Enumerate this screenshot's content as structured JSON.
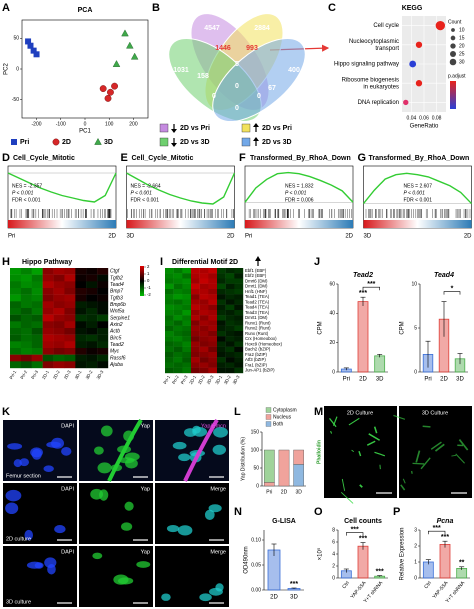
{
  "panels": {
    "A": {
      "label": "A",
      "title": "PCA",
      "xlabel": "PC1",
      "ylabel": "PC2",
      "xlim": [
        -260,
        260
      ],
      "ylim": [
        -80,
        80
      ],
      "xticks": [
        -200,
        -100,
        0,
        100,
        200
      ],
      "yticks": [
        -50,
        0,
        50
      ],
      "series": [
        {
          "name": "Pri",
          "color": "#1f3fbf",
          "marker": "square",
          "x": [
            -235,
            -225,
            -212,
            -200
          ],
          "y": [
            45,
            38,
            30,
            24
          ]
        },
        {
          "name": "2D",
          "color": "#d62728",
          "marker": "circle",
          "x": [
            75,
            95,
            105,
            122
          ],
          "y": [
            -32,
            -48,
            -38,
            -28
          ]
        },
        {
          "name": "3D",
          "color": "#3fa84a",
          "marker": "triangle",
          "x": [
            130,
            165,
            185,
            205
          ],
          "y": [
            8,
            58,
            38,
            20
          ]
        }
      ]
    },
    "B": {
      "label": "B",
      "numbers": [
        4547,
        2884,
        1031,
        {
          "value": 1446,
          "color": "#e53935"
        },
        {
          "value": 993,
          "color": "#e53935"
        },
        400,
        158,
        5,
        67,
        0,
        0,
        0,
        0
      ],
      "legend": [
        {
          "label": "2D vs Pri",
          "direction": "down",
          "color": "#c58be0"
        },
        {
          "label": "2D vs Pri",
          "direction": "up",
          "color": "#f2e25c"
        },
        {
          "label": "2D vs 3D",
          "direction": "down",
          "color": "#6fcf6f"
        },
        {
          "label": "2D vs 3D",
          "direction": "up",
          "color": "#72a8e8"
        }
      ]
    },
    "C": {
      "label": "C",
      "title": "KEGG",
      "xlabel": "GeneRatio",
      "xlim": [
        0.025,
        0.095
      ],
      "xticks": [
        0.04,
        0.06,
        0.08
      ],
      "terms": [
        {
          "lines": [
            "Cell cycle"
          ],
          "ratio": 0.086,
          "count": 30,
          "color": "#e8231c"
        },
        {
          "lines": [
            "Nucleocytoplasmic",
            "transport"
          ],
          "ratio": 0.052,
          "count": 14,
          "color": "#e8231c"
        },
        {
          "lines": [
            "Hippo signaling pathway"
          ],
          "ratio": 0.042,
          "count": 16,
          "color": "#2a3fd6"
        },
        {
          "lines": [
            "Ribosome biogenesis",
            "in eukaryotes"
          ],
          "ratio": 0.052,
          "count": 14,
          "color": "#e8231c"
        },
        {
          "lines": [
            "DNA replication"
          ],
          "ratio": 0.031,
          "count": 10,
          "color": "#e0306a"
        }
      ],
      "count_title": "Count",
      "count_legend": [
        10,
        15,
        20,
        25,
        30
      ],
      "color_title": "p.adjust"
    },
    "gsea": [
      {
        "label": "D",
        "title": "Cell_Cycle_Mitotic",
        "nes": "NES = -2.357",
        "p": "P < 0.001",
        "fdr": "FDR < 0.001",
        "left": "Pri",
        "right": "2D",
        "ylim": [
          -0.7,
          0.1
        ],
        "curve": [
          0,
          -0.1,
          -0.2,
          -0.3,
          -0.38,
          -0.45,
          -0.5,
          -0.55,
          -0.58,
          -0.45,
          0
        ]
      },
      {
        "label": "E",
        "title": "Cell_Cycle_Mitotic",
        "nes": "NES = -2.664",
        "p": "P < 0.001",
        "fdr": "FDR < 0.001",
        "left": "3D",
        "right": "2D",
        "ylim": [
          -0.7,
          0.1
        ],
        "curve": [
          0,
          -0.12,
          -0.24,
          -0.34,
          -0.43,
          -0.5,
          -0.56,
          -0.6,
          -0.62,
          -0.48,
          0
        ]
      },
      {
        "label": "F",
        "title": "Transformed_By_RhoA_Down",
        "nes": "NES = 1.832",
        "p": "P < 0.001",
        "fdr": "FDR = 0.006",
        "left": "Pri",
        "right": "2D",
        "ylim": [
          -0.1,
          0.6
        ],
        "curve": [
          0,
          0.25,
          0.4,
          0.5,
          0.52,
          0.5,
          0.45,
          0.38,
          0.3,
          0.2,
          0
        ]
      },
      {
        "label": "G",
        "title": "Transformed_By_RhoA_Down",
        "nes": "NES = 2.607",
        "p": "P < 0.001",
        "fdr": "FDR < 0.001",
        "left": "3D",
        "right": "2D",
        "ylim": [
          -0.1,
          0.8
        ],
        "curve": [
          0,
          0.3,
          0.55,
          0.65,
          0.68,
          0.65,
          0.6,
          0.5,
          0.4,
          0.25,
          0
        ]
      }
    ],
    "H": {
      "label": "H",
      "title": "Hippo Pathway",
      "columns": [
        "Pri-1",
        "Pri-2",
        "Pri-3",
        "2D-1",
        "2D-2",
        "2D-3",
        "3D-1",
        "3D-2",
        "3D-3"
      ],
      "rows": [
        "Ctgf",
        "Tgfb2",
        "Tead4",
        "Bmp7",
        "Tgfb3",
        "Bmp6b",
        "Wnt5a",
        "Serpine1",
        "Axin2",
        "Actb",
        "Birc5",
        "Tead2",
        "Myc",
        "Rassf6",
        "Ajuba"
      ],
      "matrix": [
        [
          -1.5,
          -1.3,
          -1.6,
          1.2,
          1.4,
          1.3,
          0.2,
          0.1,
          0.3
        ],
        [
          -1.4,
          -1.5,
          -1.2,
          1.3,
          1.1,
          1.5,
          0.1,
          0.2,
          -0.1
        ],
        [
          -1.2,
          -1.4,
          -1.3,
          1.5,
          1.3,
          1.2,
          0,
          -0.2,
          0.1
        ],
        [
          -1.3,
          -1.1,
          -1.4,
          1.2,
          1.4,
          1.1,
          0.3,
          0.2,
          0
        ],
        [
          -1.5,
          -1.2,
          -1.3,
          1.1,
          1.3,
          1.4,
          0.2,
          0,
          0.1
        ],
        [
          -1,
          -1.2,
          -1.1,
          1.4,
          1.2,
          1.3,
          -0.3,
          -0.2,
          -0.1
        ],
        [
          -1.1,
          -0.9,
          -1.2,
          1.3,
          1.5,
          1.1,
          -0.2,
          -0.4,
          -0.1
        ],
        [
          -0.8,
          -1,
          -0.9,
          1.6,
          1.3,
          1.2,
          -0.5,
          -0.4,
          -0.6
        ],
        [
          -1.2,
          -1,
          -1.1,
          1.2,
          1.1,
          1.4,
          -0.1,
          -0.3,
          0
        ],
        [
          -1,
          -1.1,
          -0.8,
          1.3,
          1.2,
          1,
          -0.2,
          -0.1,
          -0.3
        ],
        [
          -0.9,
          -1.1,
          -1,
          1.5,
          1.4,
          1.3,
          -0.4,
          -0.5,
          -0.3
        ],
        [
          -1.3,
          -1.2,
          -1,
          1.4,
          1.3,
          1.5,
          -0.3,
          -0.2,
          -0.4
        ],
        [
          -1.1,
          -1.3,
          -1.2,
          1.2,
          1,
          1.1,
          0.3,
          0.1,
          0.2
        ],
        [
          1.2,
          1,
          1.3,
          -0.8,
          -1,
          -0.9,
          -0.3,
          -0.2,
          -0.4
        ],
        [
          -1,
          -0.8,
          -1.1,
          1.1,
          1.3,
          1.2,
          -0.2,
          -0.3,
          -0.1
        ]
      ],
      "scale": [
        2,
        1,
        0,
        -1,
        -2
      ]
    },
    "I": {
      "label": "I",
      "title": "Differential Motif 2D",
      "columns": [
        "Pri-1",
        "Pri-2",
        "Pri-3",
        "2D-1",
        "2D-2",
        "2D-3",
        "3D-1",
        "3D-2",
        "3D-3"
      ],
      "rows": [
        "Ebf1 (EBF)",
        "Ebf2 (EBF)",
        "Dmrt6 (DM)",
        "Dmrt1 (DM)",
        "Hnf1 (HNF)",
        "Tead1 (TEA)",
        "Tead2 (TEA)",
        "Tead4 (TEA)",
        "Tead3 (TEA)",
        "Dmrt1 (DM)",
        "Runx1 (Runt)",
        "Runx2 (Runt)",
        "Runx (Runt)",
        "Crx (Homeobox)",
        "Hoxc9 (Homeobox)",
        "Bach2 (bZIP)",
        "Fra2 (bZIP)",
        "Atf3 (bZIP)",
        "Fra1 (bZIP)",
        "Jun-AP1 (bZIP)"
      ],
      "matrix": [
        [
          -1.4,
          -1.2,
          -1.5,
          1.6,
          1.5,
          1.7,
          -0.6,
          -0.4,
          -0.5
        ],
        [
          -1.3,
          -1.4,
          -1.1,
          1.5,
          1.6,
          1.4,
          -0.5,
          -0.7,
          -0.3
        ],
        [
          -1.2,
          -1.3,
          -1.4,
          1.4,
          1.7,
          1.5,
          -0.4,
          -0.6,
          -0.6
        ],
        [
          -1.5,
          -1.1,
          -1.3,
          1.7,
          1.4,
          1.5,
          -0.7,
          -0.3,
          -0.5
        ],
        [
          -1.1,
          -1.3,
          -1.2,
          1.5,
          1.5,
          1.3,
          -0.4,
          -0.5,
          -0.6
        ],
        [
          -1.3,
          -1.5,
          -1.4,
          1.2,
          1.6,
          1.5,
          -0.2,
          -0.4,
          -0.3
        ],
        [
          -1.2,
          -1.1,
          -1.3,
          1.4,
          1.3,
          1.6,
          -0.5,
          -0.2,
          -0.4
        ],
        [
          -1.4,
          -1.3,
          -1.2,
          1.6,
          1.4,
          1.2,
          -0.3,
          -0.6,
          -0.2
        ],
        [
          -1.3,
          -1.2,
          -1.5,
          1.3,
          1.5,
          1.4,
          -0.4,
          -0.3,
          -0.5
        ],
        [
          -1.1,
          -1.4,
          -1.2,
          1.5,
          1.2,
          1.5,
          -0.6,
          -0.4,
          -0.3
        ],
        [
          -1.2,
          -1,
          -1.3,
          1.1,
          1.4,
          1.3,
          -0.2,
          -0.5,
          -0.4
        ],
        [
          -1,
          -1.2,
          -1.1,
          1.3,
          1.2,
          1.4,
          -0.3,
          -0.4,
          -0.6
        ],
        [
          -1.3,
          -1.1,
          -1,
          1.2,
          1.3,
          1.1,
          -0.5,
          -0.3,
          -0.2
        ],
        [
          -1.2,
          -1.3,
          -1.1,
          1,
          1.2,
          1.3,
          -0.1,
          -0.4,
          -0.3
        ],
        [
          -1,
          -1.1,
          -1.3,
          1.3,
          1.1,
          1.2,
          -0.4,
          -0.2,
          -0.5
        ],
        [
          -1.1,
          -0.9,
          -1.2,
          1.2,
          1.4,
          1,
          -0.3,
          -0.5,
          -0.1
        ],
        [
          -0.9,
          -1.1,
          -1,
          1.1,
          1.2,
          1.3,
          -0.2,
          -0.3,
          -0.4
        ],
        [
          -1,
          -1.2,
          -0.9,
          1.4,
          1,
          1.2,
          -0.5,
          -0.1,
          -0.3
        ],
        [
          -1.1,
          -1,
          -1.1,
          1.2,
          1.3,
          1.1,
          -0.3,
          -0.4,
          -0.2
        ],
        [
          -0.9,
          -1,
          -1.2,
          1,
          1.1,
          1.4,
          -0.2,
          -0.2,
          -0.5
        ]
      ]
    },
    "J": {
      "label": "J",
      "charts": [
        {
          "title": "Tead2",
          "ylabel": "CPM",
          "categories": [
            "Pri",
            "2D",
            "3D"
          ],
          "values": [
            2,
            48,
            11
          ],
          "errors": [
            0.8,
            3,
            1
          ],
          "colors": [
            "#3a6fd8",
            "#e0403a",
            "#4cae4c"
          ],
          "ylim": [
            0,
            60
          ],
          "yticks": [
            0,
            20,
            40,
            60
          ],
          "sig": [
            null,
            "***",
            null
          ],
          "bracket": {
            "from": 1,
            "to": 2,
            "label": "***"
          }
        },
        {
          "title": "Tead4",
          "ylabel": "CPM",
          "categories": [
            "Pri",
            "2D",
            "3D"
          ],
          "values": [
            2,
            6,
            1.5
          ],
          "errors": [
            1.5,
            2,
            0.6
          ],
          "colors": [
            "#3a6fd8",
            "#e0403a",
            "#4cae4c"
          ],
          "ylim": [
            0,
            10
          ],
          "yticks": [
            0,
            5,
            10
          ],
          "sig": [
            null,
            null,
            null
          ],
          "bracket": {
            "from": 1,
            "to": 2,
            "label": "*"
          }
        }
      ]
    },
    "K": {
      "label": "K",
      "rows": [
        {
          "section": "Femur section",
          "channels": [
            "DAPI",
            "Yap",
            "Yap/Emcn"
          ]
        },
        {
          "section": "2D culture",
          "channels": [
            "DAPI",
            "Yap",
            "Merge"
          ]
        },
        {
          "section": "3D culture",
          "channels": [
            "DAPI",
            "Yap",
            "Merge"
          ]
        }
      ]
    },
    "L": {
      "label": "L",
      "ylabel": "Yap Distribution (%)",
      "categories": [
        "Pri",
        "2D",
        "3D"
      ],
      "ylim": [
        0,
        150
      ],
      "yticks": [
        0,
        50,
        100,
        150
      ],
      "series": [
        {
          "name": "Cytoplasm",
          "color": "#9fd39a",
          "values": [
            90,
            0,
            0
          ]
        },
        {
          "name": "Nucleus",
          "color": "#f0a39c",
          "values": [
            10,
            100,
            40
          ]
        },
        {
          "name": "Both",
          "color": "#8fb8e0",
          "values": [
            0,
            0,
            60
          ]
        }
      ]
    },
    "M": {
      "label": "M",
      "stain": "Phalloidin",
      "images": [
        "2D Culture",
        "3D Culture"
      ]
    },
    "N": {
      "label": "N",
      "title": "G-LISA",
      "ylabel": "OD490nm",
      "categories": [
        "2D",
        "3D"
      ],
      "values": [
        0.08,
        0.003
      ],
      "errors": [
        0.012,
        0.001
      ],
      "colors": [
        "#3a6fd8",
        "#3a6fd8"
      ],
      "ylim": [
        0,
        0.12
      ],
      "yticks": [
        {
          "value": 0,
          "label": "0.00"
        },
        0.05,
        {
          "value": 0.1,
          "label": "0.10"
        }
      ],
      "sig": [
        null,
        "***"
      ],
      "rotate": false
    },
    "O": {
      "label": "O",
      "title": "Cell counts",
      "ylabel": "×10⁵",
      "categories": [
        "Ctrl",
        "YAP-5SA",
        "Y+T shRNA"
      ],
      "values": [
        1.2,
        5.3,
        0.3
      ],
      "errors": [
        0.3,
        0.6,
        0.1
      ],
      "colors": [
        "#3a6fd8",
        "#e0403a",
        "#4cae4c"
      ],
      "ylim": [
        0,
        8
      ],
      "yticks": [
        0,
        2,
        4,
        6,
        8
      ],
      "sig": [
        null,
        "***",
        "***"
      ],
      "bracket": {
        "from": 0,
        "to": 1,
        "label": "***"
      },
      "rotate": true
    },
    "P": {
      "label": "P",
      "title": "Pcna",
      "ylabel": "Relative Expression",
      "categories": [
        "Ctrl",
        "YAP-5SA",
        "Y+T shRNA"
      ],
      "values": [
        1,
        2.1,
        0.6
      ],
      "errors": [
        0.15,
        0.2,
        0.1
      ],
      "colors": [
        "#3a6fd8",
        "#e0403a",
        "#4cae4c"
      ],
      "ylim": [
        0,
        3
      ],
      "yticks": [
        0,
        1,
        2,
        3
      ],
      "sig": [
        null,
        "***",
        "**"
      ],
      "bracket": {
        "from": 0,
        "to": 1,
        "label": "***"
      },
      "rotate": true,
      "italic": true
    }
  }
}
